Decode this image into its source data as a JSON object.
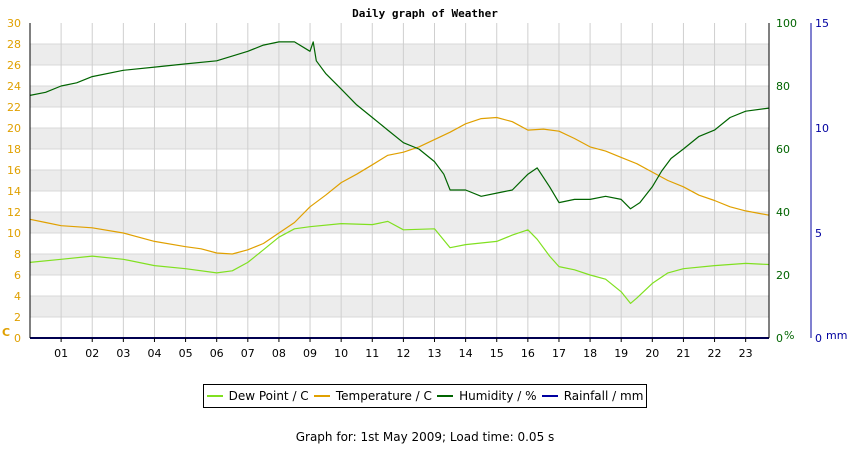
{
  "chart_data": {
    "type": "line",
    "title": "Daily graph of Weather",
    "x_ticks": [
      "01",
      "02",
      "03",
      "04",
      "05",
      "06",
      "07",
      "08",
      "09",
      "10",
      "11",
      "12",
      "13",
      "14",
      "15",
      "16",
      "17",
      "18",
      "19",
      "20",
      "21",
      "22",
      "23"
    ],
    "xlim": [
      0,
      23.75
    ],
    "axes": {
      "left": {
        "label": "C",
        "lim": [
          0,
          30
        ],
        "ticks": [
          0,
          2,
          4,
          6,
          8,
          10,
          12,
          14,
          16,
          18,
          20,
          22,
          24,
          26,
          28,
          30
        ],
        "color": "#e0a000"
      },
      "right1": {
        "label": "%",
        "lim": [
          0,
          100
        ],
        "ticks": [
          0,
          20,
          40,
          60,
          80,
          100
        ],
        "color": "#006400"
      },
      "right2": {
        "label": "mm",
        "lim": [
          0,
          15
        ],
        "ticks": [
          0,
          5,
          10,
          15
        ],
        "color": "#0000a0"
      }
    },
    "grid": true,
    "legend_position": "bottom",
    "series": [
      {
        "name": "Dew Point / C",
        "axis": "left",
        "color": "#80e020",
        "x": [
          0,
          1,
          2,
          3,
          4,
          5,
          6,
          6.5,
          7,
          7.5,
          8,
          8.5,
          9,
          10,
          11,
          11.5,
          12,
          13,
          13.5,
          14,
          15,
          15.5,
          16,
          16.3,
          16.7,
          17,
          17.5,
          18,
          18.5,
          19,
          19.3,
          19.5,
          20,
          20.5,
          21,
          22,
          23,
          23.75
        ],
        "y": [
          7.2,
          7.5,
          7.8,
          7.5,
          6.9,
          6.6,
          6.2,
          6.4,
          7.2,
          8.4,
          9.6,
          10.4,
          10.6,
          10.9,
          10.8,
          11.1,
          10.3,
          10.4,
          8.6,
          8.9,
          9.2,
          9.8,
          10.3,
          9.4,
          7.8,
          6.8,
          6.5,
          6.0,
          5.6,
          4.4,
          3.3,
          3.8,
          5.2,
          6.2,
          6.6,
          6.9,
          7.1,
          7.0
        ]
      },
      {
        "name": "Temperature / C",
        "axis": "left",
        "color": "#e0a000",
        "x": [
          0,
          0.5,
          1,
          2,
          3,
          4,
          5,
          5.5,
          6,
          6.5,
          7,
          7.5,
          8,
          8.5,
          9,
          9.5,
          10,
          10.5,
          11,
          11.5,
          12,
          12.5,
          13,
          13.5,
          14,
          14.5,
          15,
          15.5,
          16,
          16.5,
          17,
          17.5,
          18,
          18.5,
          19,
          19.5,
          20,
          20.5,
          21,
          21.5,
          22,
          22.5,
          23,
          23.75
        ],
        "y": [
          11.3,
          11.0,
          10.7,
          10.5,
          10.0,
          9.2,
          8.7,
          8.5,
          8.1,
          8.0,
          8.4,
          9.0,
          10.0,
          11.0,
          12.5,
          13.6,
          14.8,
          15.6,
          16.5,
          17.4,
          17.7,
          18.2,
          18.9,
          19.6,
          20.4,
          20.9,
          21.0,
          20.6,
          19.8,
          19.9,
          19.7,
          19.0,
          18.2,
          17.8,
          17.2,
          16.6,
          15.8,
          15.0,
          14.4,
          13.6,
          13.1,
          12.5,
          12.1,
          11.7
        ]
      },
      {
        "name": "Humidity / %",
        "axis": "right1",
        "color": "#006400",
        "x": [
          0,
          0.5,
          1,
          1.5,
          2,
          3,
          4,
          5,
          6,
          7,
          7.5,
          8,
          8.5,
          9,
          9.1,
          9.2,
          9.5,
          10,
          10.5,
          11,
          11.5,
          12,
          12.5,
          13,
          13.3,
          13.5,
          14,
          14.5,
          15,
          15.5,
          16,
          16.3,
          16.7,
          17,
          17.5,
          18,
          18.5,
          19,
          19.3,
          19.6,
          20,
          20.3,
          20.6,
          21,
          21.5,
          22,
          22.5,
          23,
          23.75
        ],
        "y": [
          77,
          78,
          80,
          81,
          83,
          85,
          86,
          87,
          88,
          91,
          93,
          94,
          94,
          91,
          94,
          88,
          84,
          79,
          74,
          70,
          66,
          62,
          60,
          56,
          52,
          47,
          47,
          45,
          46,
          47,
          52,
          54,
          48,
          43,
          44,
          44,
          45,
          44,
          41,
          43,
          48,
          53,
          57,
          60,
          64,
          66,
          70,
          72,
          73
        ]
      },
      {
        "name": "Rainfall / mm",
        "axis": "right2",
        "color": "#0000a0",
        "x": [
          0,
          23.75
        ],
        "y": [
          0,
          0
        ]
      }
    ]
  },
  "footer": "Graph for: 1st May 2009; Load time: 0.05 s"
}
